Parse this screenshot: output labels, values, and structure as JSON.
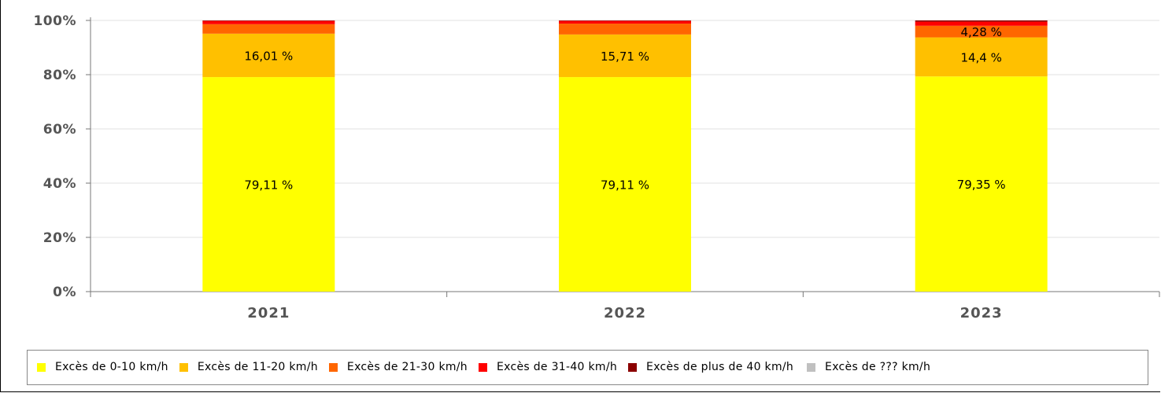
{
  "chart_data": {
    "type": "bar",
    "stacked": true,
    "percent": true,
    "categories": [
      "2021",
      "2022",
      "2023"
    ],
    "series": [
      {
        "name": "Excès de 0-10 km/h",
        "color": "#ffff00",
        "values": [
          79.11,
          79.11,
          79.35
        ],
        "labels": [
          "79,11 %",
          "79,11 %",
          "79,35 %"
        ]
      },
      {
        "name": "Excès de 11-20 km/h",
        "color": "#ffc000",
        "values": [
          16.01,
          15.71,
          14.4
        ],
        "labels": [
          "16,01 %",
          "15,71 %",
          "14,4 %"
        ]
      },
      {
        "name": "Excès de 21-30 km/h",
        "color": "#ff6600",
        "values": [
          3.5,
          4.0,
          4.28
        ],
        "labels": [
          "",
          "",
          "4,28 %"
        ]
      },
      {
        "name": "Excès de 31-40 km/h",
        "color": "#ff0000",
        "values": [
          1.2,
          1.0,
          1.5
        ],
        "labels": [
          "",
          "",
          ""
        ]
      },
      {
        "name": "Excès de plus de 40 km/h",
        "color": "#8b0000",
        "values": [
          0.18,
          0.18,
          0.47
        ],
        "labels": [
          "",
          "",
          ""
        ]
      },
      {
        "name": "Excès de ??? km/h",
        "color": "#c0c0c0",
        "values": [
          0,
          0,
          0
        ],
        "labels": [
          "",
          "",
          ""
        ]
      }
    ],
    "yticks": [
      "0%",
      "20%",
      "40%",
      "60%",
      "80%",
      "100%"
    ],
    "ylim": [
      0,
      100
    ],
    "grid": true,
    "legend_position": "bottom"
  }
}
